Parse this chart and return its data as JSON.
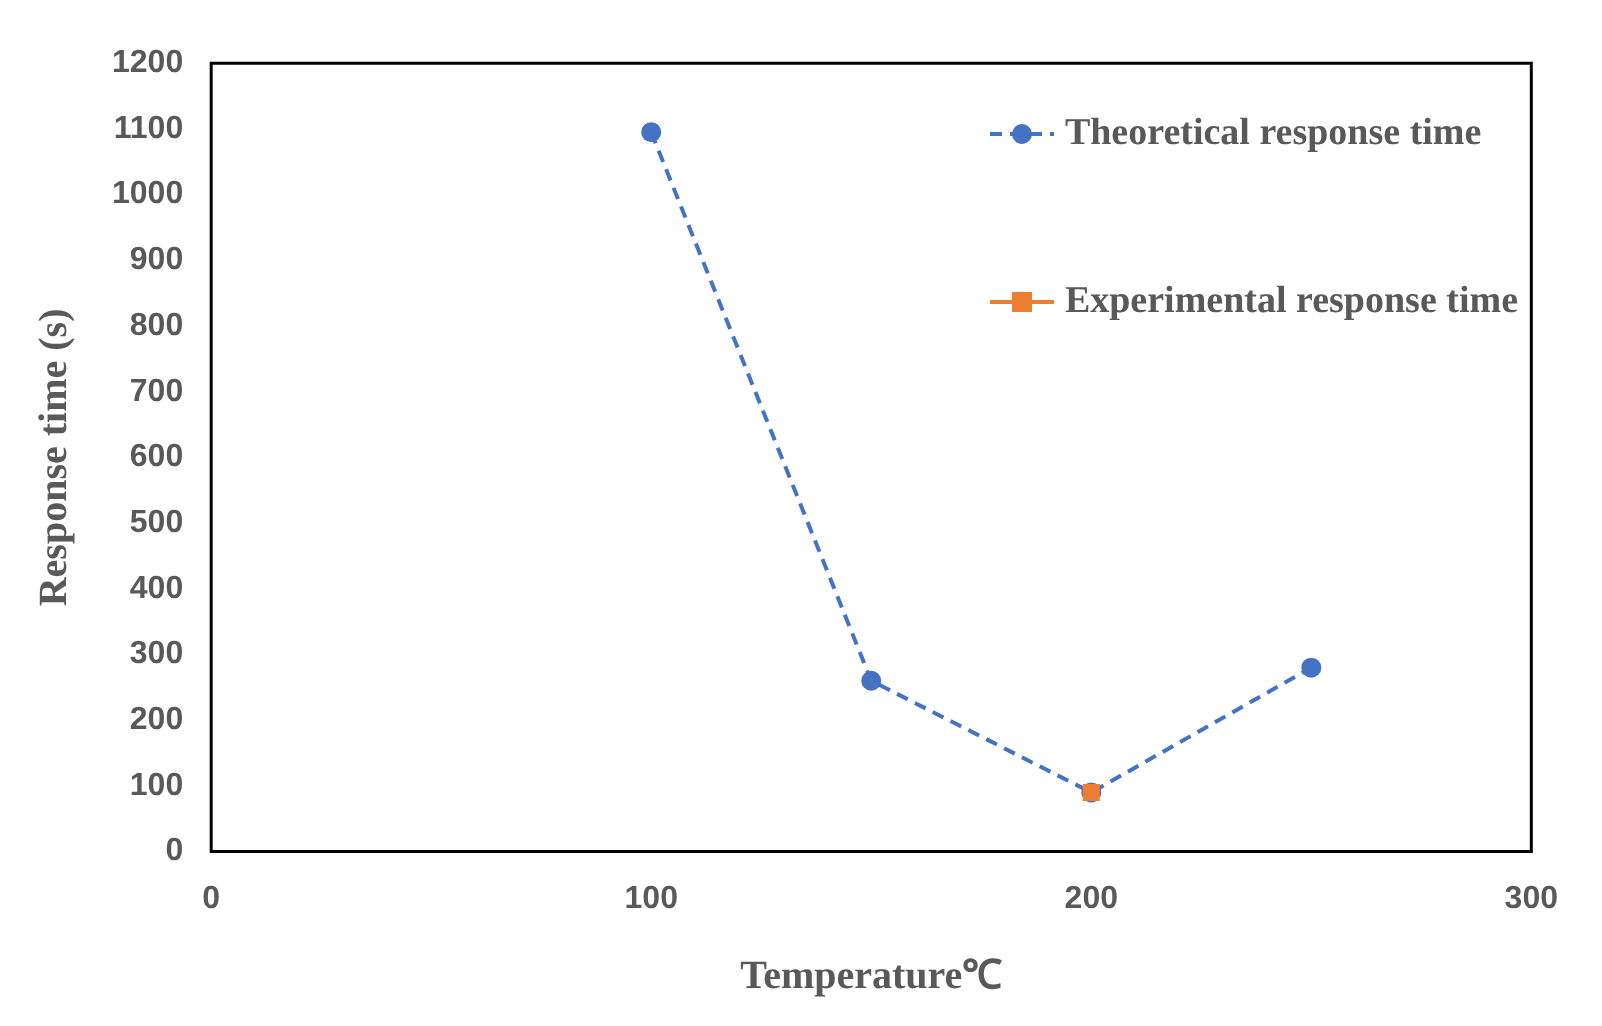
{
  "chart_data": {
    "type": "line",
    "xlabel": "Temperature℃",
    "ylabel": "Response time (s)",
    "xlim": [
      0,
      300
    ],
    "xticks": [
      0,
      100,
      200,
      300
    ],
    "ylim": [
      0,
      1200
    ],
    "yticks": [
      0,
      100,
      200,
      300,
      400,
      500,
      600,
      700,
      800,
      900,
      1000,
      1100,
      1200
    ],
    "grid": false,
    "legend": "top right",
    "series": [
      {
        "name": "Theoretical response time",
        "color": "#4472c4",
        "x": [
          100,
          150,
          200,
          250
        ],
        "values": [
          1095,
          260,
          90,
          280
        ],
        "marker": "circle",
        "line_style": "dashed"
      },
      {
        "name": "Experimental response time",
        "color": "#ed7d31",
        "x": [
          200
        ],
        "values": [
          90
        ],
        "marker": "square",
        "line_style": "solid"
      }
    ]
  }
}
